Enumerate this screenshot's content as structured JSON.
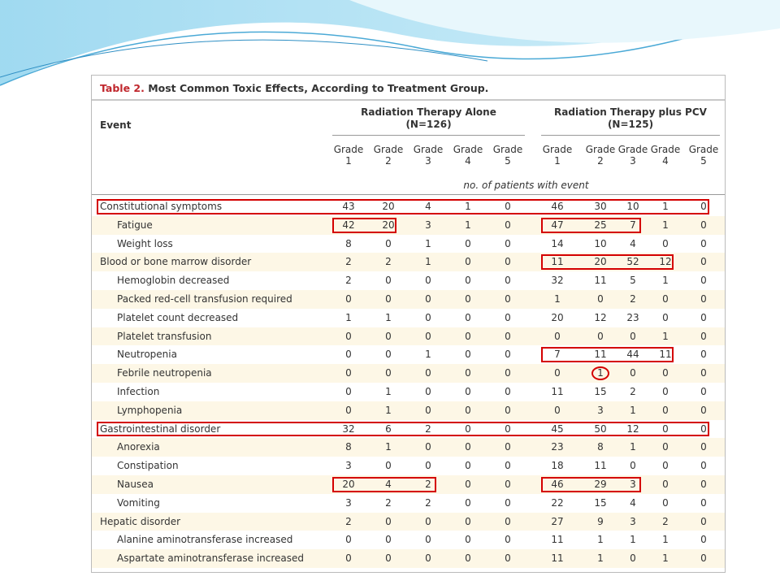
{
  "table": {
    "title_label": "Table 2.",
    "title_text": "Most Common Toxic Effects, According to Treatment Group.",
    "event_header": "Event",
    "arms": [
      {
        "name": "Radiation Therapy Alone",
        "n": "(N=126)"
      },
      {
        "name": "Radiation Therapy plus PCV",
        "n": "(N=125)"
      }
    ],
    "grade_label": "Grade",
    "grades": [
      1,
      2,
      3,
      4,
      5
    ],
    "unit_note": "no. of patients with event",
    "groups": [
      {
        "event": "Constitutional symptoms",
        "values": [
          43,
          20,
          4,
          1,
          0,
          46,
          30,
          10,
          1,
          0
        ],
        "items": [
          {
            "event": "Fatigue",
            "values": [
              42,
              20,
              3,
              1,
              0,
              47,
              25,
              7,
              1,
              0
            ]
          },
          {
            "event": "Weight loss",
            "values": [
              8,
              0,
              1,
              0,
              0,
              14,
              10,
              4,
              0,
              0
            ]
          }
        ]
      },
      {
        "event": "Blood or bone marrow disorder",
        "values": [
          2,
          2,
          1,
          0,
          0,
          11,
          20,
          52,
          12,
          0
        ],
        "items": [
          {
            "event": "Hemoglobin decreased",
            "values": [
              2,
              0,
              0,
              0,
              0,
              32,
              11,
              5,
              1,
              0
            ]
          },
          {
            "event": "Packed red-cell transfusion required",
            "values": [
              0,
              0,
              0,
              0,
              0,
              1,
              0,
              2,
              0,
              0
            ]
          },
          {
            "event": "Platelet count decreased",
            "values": [
              1,
              1,
              0,
              0,
              0,
              20,
              12,
              23,
              0,
              0
            ]
          },
          {
            "event": "Platelet transfusion",
            "values": [
              0,
              0,
              0,
              0,
              0,
              0,
              0,
              0,
              1,
              0
            ]
          },
          {
            "event": "Neutropenia",
            "values": [
              0,
              0,
              1,
              0,
              0,
              7,
              11,
              44,
              11,
              0
            ]
          },
          {
            "event": "Febrile neutropenia",
            "values": [
              0,
              0,
              0,
              0,
              0,
              0,
              1,
              0,
              0,
              0
            ]
          },
          {
            "event": "Infection",
            "values": [
              0,
              1,
              0,
              0,
              0,
              11,
              15,
              2,
              0,
              0
            ]
          },
          {
            "event": "Lymphopenia",
            "values": [
              0,
              1,
              0,
              0,
              0,
              0,
              3,
              1,
              0,
              0
            ]
          }
        ]
      },
      {
        "event": "Gastrointestinal disorder",
        "values": [
          32,
          6,
          2,
          0,
          0,
          45,
          50,
          12,
          0,
          0
        ],
        "items": [
          {
            "event": "Anorexia",
            "values": [
              8,
              1,
              0,
              0,
              0,
              23,
              8,
              1,
              0,
              0
            ]
          },
          {
            "event": "Constipation",
            "values": [
              3,
              0,
              0,
              0,
              0,
              18,
              11,
              0,
              0,
              0
            ]
          },
          {
            "event": "Nausea",
            "values": [
              20,
              4,
              2,
              0,
              0,
              46,
              29,
              3,
              0,
              0
            ]
          },
          {
            "event": "Vomiting",
            "values": [
              3,
              2,
              2,
              0,
              0,
              22,
              15,
              4,
              0,
              0
            ]
          }
        ]
      },
      {
        "event": "Hepatic disorder",
        "values": [
          2,
          0,
          0,
          0,
          0,
          27,
          9,
          3,
          2,
          0
        ],
        "items": [
          {
            "event": "Alanine aminotransferase increased",
            "values": [
              0,
              0,
              0,
              0,
              0,
              11,
              1,
              1,
              1,
              0
            ]
          },
          {
            "event": "Aspartate aminotransferase increased",
            "values": [
              0,
              0,
              0,
              0,
              0,
              11,
              1,
              0,
              1,
              0
            ]
          }
        ]
      }
    ]
  }
}
